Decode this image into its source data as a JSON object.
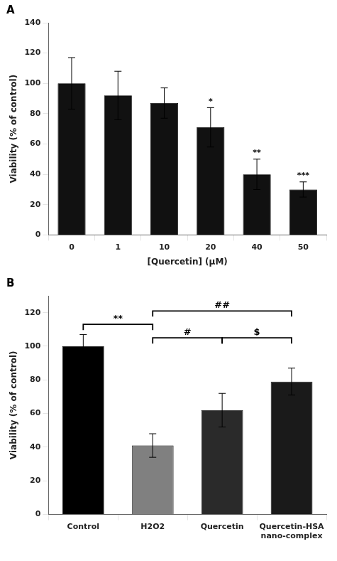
{
  "chart_data": [
    {
      "type": "bar",
      "title": "A",
      "categories": [
        "0",
        "1",
        "10",
        "20",
        "40",
        "50"
      ],
      "values": [
        100,
        92,
        87,
        71,
        40,
        30
      ],
      "errors": [
        17,
        16,
        10,
        13,
        10,
        5
      ],
      "color": "#111111",
      "xlabel": "[Quercetin] (μM)",
      "ylabel": "Viability (% of control)",
      "ylim": [
        0,
        140
      ],
      "yticks": [
        0,
        20,
        40,
        60,
        80,
        100,
        120,
        140
      ],
      "grid": false,
      "annotations": [
        {
          "x": "20",
          "text": "*"
        },
        {
          "x": "40",
          "text": "**"
        },
        {
          "x": "50",
          "text": "***"
        }
      ]
    },
    {
      "type": "bar",
      "title": "B",
      "categories": [
        "Control",
        "H2O2",
        "Quercetin",
        "Quercetin-HSA\nnano-complex"
      ],
      "values": [
        100,
        41,
        62,
        79
      ],
      "errors": [
        7,
        7,
        10,
        8
      ],
      "colors": [
        "#000000",
        "#808080",
        "#2a2a2a",
        "#1a1a1a"
      ],
      "ylabel": "Viability (% of control)",
      "ylim": [
        0,
        130
      ],
      "yticks": [
        0,
        20,
        40,
        60,
        80,
        100,
        120
      ],
      "grid": false,
      "annotations": [
        {
          "x1": "Control",
          "x2": "H2O2",
          "y": 113,
          "text": "**"
        },
        {
          "x1": "H2O2",
          "x2": "Quercetin",
          "y": 105,
          "text": "#"
        },
        {
          "x1": "H2O2",
          "x2": "Quercetin-HSA\nnano-complex",
          "y": 121,
          "text": "##"
        },
        {
          "x1": "Quercetin",
          "x2": "Quercetin-HSA\nnano-complex",
          "y": 105,
          "text": "$"
        }
      ]
    }
  ]
}
